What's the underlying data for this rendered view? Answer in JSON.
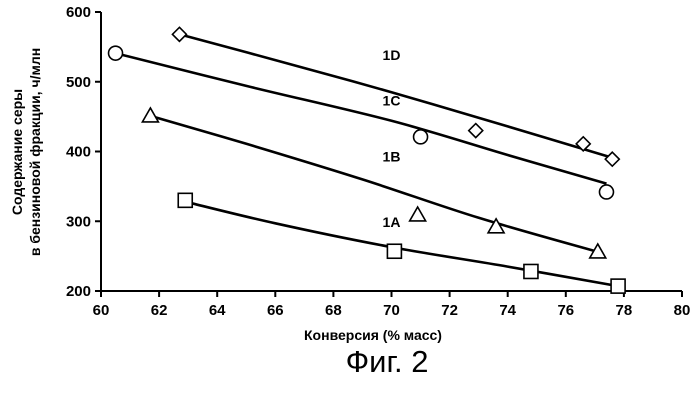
{
  "caption": "Фиг. 2",
  "chart_data": {
    "type": "scatter",
    "xlabel": "Конверсия (% масс)",
    "ylabel_lines": [
      "Содержание серы",
      "в бензиновой фракции, ч/млн"
    ],
    "xlim": [
      60,
      80
    ],
    "ylim": [
      200,
      600
    ],
    "xticks": [
      60,
      62,
      64,
      66,
      68,
      70,
      72,
      74,
      76,
      78,
      80
    ],
    "yticks": [
      200,
      300,
      400,
      500,
      600
    ],
    "grid": false,
    "series": [
      {
        "name": "1A",
        "marker": "square",
        "points": [
          [
            62.9,
            330
          ],
          [
            70.1,
            257
          ],
          [
            74.8,
            228
          ],
          [
            77.8,
            207
          ]
        ],
        "fit": [
          [
            62.9,
            328
          ],
          [
            66.0,
            297
          ],
          [
            70.0,
            263
          ],
          [
            74.0,
            235
          ],
          [
            77.8,
            207
          ]
        ]
      },
      {
        "name": "1B",
        "marker": "triangle",
        "points": [
          [
            61.7,
            451
          ],
          [
            70.9,
            309
          ],
          [
            73.6,
            292
          ],
          [
            77.1,
            256
          ]
        ],
        "fit": [
          [
            61.7,
            451
          ],
          [
            65.0,
            411
          ],
          [
            69.0,
            360
          ],
          [
            73.0,
            305
          ],
          [
            77.1,
            256
          ]
        ]
      },
      {
        "name": "1C",
        "marker": "circle",
        "points": [
          [
            60.5,
            541
          ],
          [
            71.0,
            421
          ],
          [
            77.4,
            342
          ]
        ],
        "fit": [
          [
            60.5,
            541
          ],
          [
            65.0,
            494
          ],
          [
            70.0,
            444
          ],
          [
            74.0,
            395
          ],
          [
            77.4,
            354
          ]
        ]
      },
      {
        "name": "1D",
        "marker": "diamond",
        "points": [
          [
            62.7,
            568
          ],
          [
            72.9,
            430
          ],
          [
            76.6,
            411
          ],
          [
            77.6,
            389
          ]
        ],
        "fit": [
          [
            62.7,
            568
          ],
          [
            66.0,
            531
          ],
          [
            70.0,
            485
          ],
          [
            74.0,
            436
          ],
          [
            77.6,
            391
          ]
        ]
      }
    ]
  }
}
